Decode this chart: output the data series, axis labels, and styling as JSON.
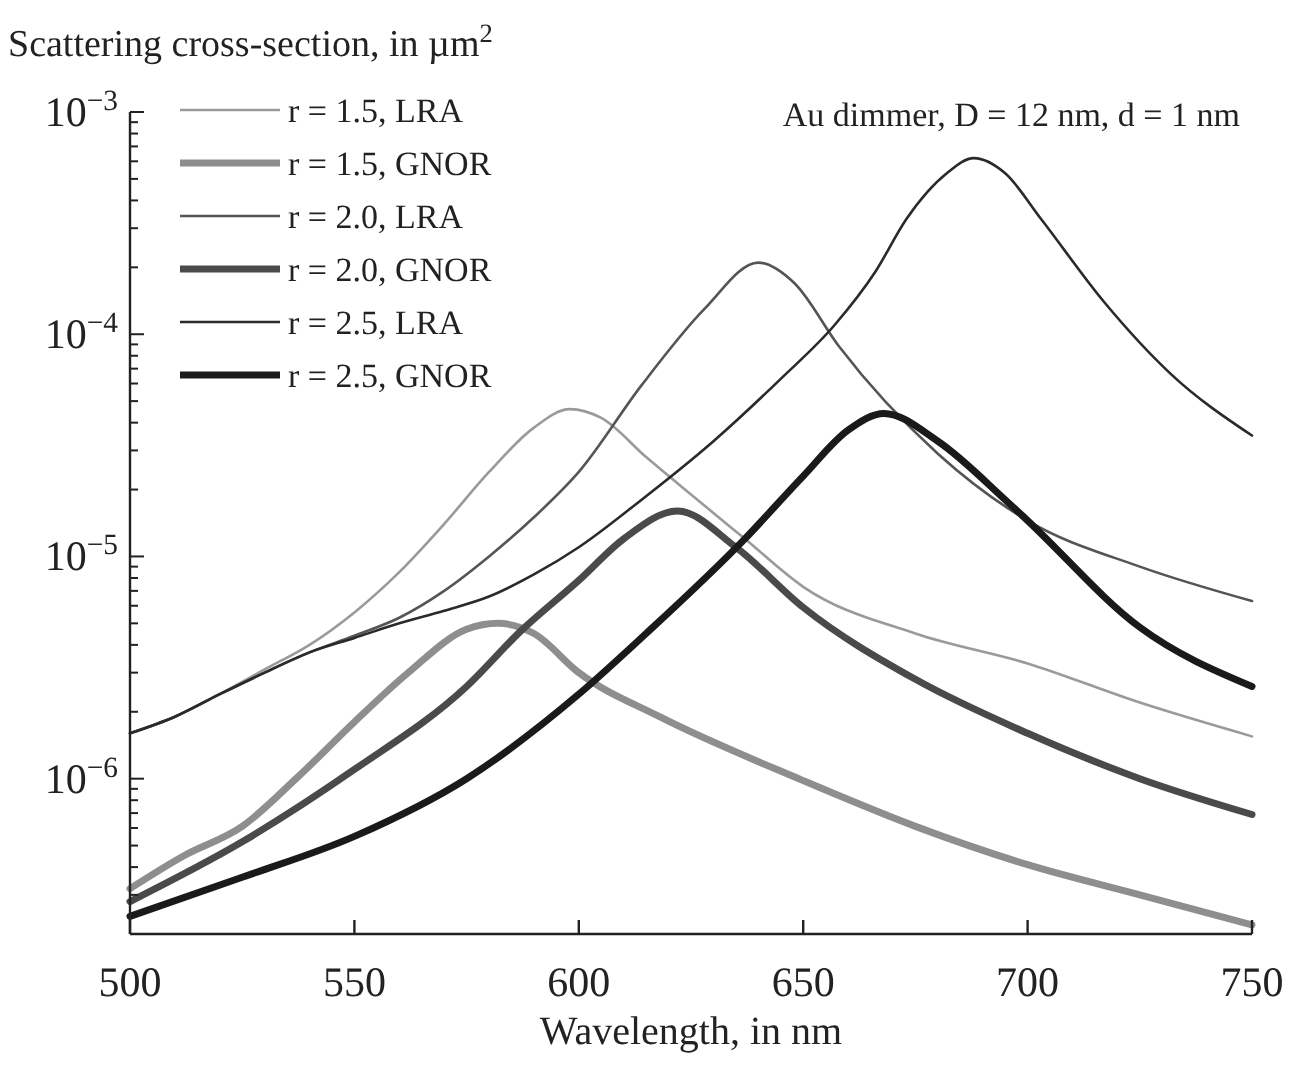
{
  "chart_data": {
    "type": "line",
    "ylabel": "Scattering cross-section, in µm$^{2}$",
    "xlabel": "Wavelength, in nm",
    "annotations": [
      "Au dimmer, D = 12 nm, d = 1 nm"
    ],
    "log": "y",
    "legend": "top left",
    "grid": false,
    "marker": "none",
    "line_style": "solid",
    "xlim": [
      500,
      750
    ],
    "xticks": [
      500,
      550,
      600,
      650,
      700,
      750
    ],
    "ylim": [
      2e-07,
      0.001
    ],
    "yticks": [
      {
        "value": 2e-07,
        "label": null
      },
      {
        "value": 3e-07,
        "label": null
      },
      {
        "value": 4e-07,
        "label": null
      },
      {
        "value": 5e-07,
        "label": null
      },
      {
        "value": 6e-07,
        "label": null
      },
      {
        "value": 7e-07,
        "label": null
      },
      {
        "value": 8e-07,
        "label": null
      },
      {
        "value": 9e-07,
        "label": null
      },
      {
        "value": 1e-06,
        "label": "10$^{−6}$"
      },
      {
        "value": 2e-06,
        "label": null
      },
      {
        "value": 3e-06,
        "label": null
      },
      {
        "value": 4e-06,
        "label": null
      },
      {
        "value": 5e-06,
        "label": null
      },
      {
        "value": 6e-06,
        "label": null
      },
      {
        "value": 7e-06,
        "label": null
      },
      {
        "value": 8e-06,
        "label": null
      },
      {
        "value": 9e-06,
        "label": null
      },
      {
        "value": 1e-05,
        "label": "10$^{−5}$"
      },
      {
        "value": 2e-05,
        "label": null
      },
      {
        "value": 3e-05,
        "label": null
      },
      {
        "value": 4e-05,
        "label": null
      },
      {
        "value": 5e-05,
        "label": null
      },
      {
        "value": 6e-05,
        "label": null
      },
      {
        "value": 7e-05,
        "label": null
      },
      {
        "value": 8e-05,
        "label": null
      },
      {
        "value": 9e-05,
        "label": null
      },
      {
        "value": 0.0001,
        "label": "10$^{−4}$"
      },
      {
        "value": 0.0002,
        "label": null
      },
      {
        "value": 0.0003,
        "label": null
      },
      {
        "value": 0.0004,
        "label": null
      },
      {
        "value": 0.0005,
        "label": null
      },
      {
        "value": 0.0006,
        "label": null
      },
      {
        "value": 0.0007,
        "label": null
      },
      {
        "value": 0.0008,
        "label": null
      },
      {
        "value": 0.0009,
        "label": null
      },
      {
        "value": 0.001,
        "label": "10$^{−3}$"
      }
    ],
    "series": [
      {
        "name": "r = 1.5, LRA",
        "color": "#9a9a9a",
        "x": [
          500,
          510,
          520,
          530,
          540,
          550,
          560,
          570,
          580,
          590,
          598,
          605,
          615,
          625,
          637,
          650,
          675,
          700,
          725,
          750
        ],
        "values": [
          1.6e-06,
          1.9e-06,
          2.4e-06,
          3.1e-06,
          4e-06,
          5.6e-06,
          8.5e-06,
          1.4e-05,
          2.4e-05,
          3.8e-05,
          4.6e-05,
          4.2e-05,
          2.8e-05,
          1.9e-05,
          1.2e-05,
          7.3e-06,
          4.5e-06,
          3.3e-06,
          2.2e-06,
          1.55e-06
        ]
      },
      {
        "name": "r = 1.5, GNOR",
        "color": "#8e8e8e",
        "x": [
          500,
          512,
          525,
          537,
          550,
          562,
          575,
          582,
          590,
          600,
          618,
          650,
          675,
          700,
          725,
          750
        ],
        "values": [
          3.2e-07,
          4.5e-07,
          6.1e-07,
          1e-06,
          1.8e-06,
          3e-06,
          4.7e-06,
          5e-06,
          4.5e-06,
          3e-06,
          1.9e-06,
          9.8e-07,
          6.1e-07,
          4.1e-07,
          3e-07,
          2.2e-07
        ]
      },
      {
        "name": "r = 2.0, LRA",
        "color": "#555555",
        "x": [
          500,
          510,
          520,
          530,
          540,
          550,
          560,
          570,
          580,
          590,
          600,
          614,
          628,
          640,
          648,
          658,
          680,
          700,
          725,
          750
        ],
        "values": [
          1.6e-06,
          1.9e-06,
          2.4e-06,
          3e-06,
          3.7e-06,
          4.4e-06,
          5.3e-06,
          7e-06,
          1e-05,
          1.5e-05,
          2.4e-05,
          5.9e-05,
          0.00013,
          0.00021,
          0.00017,
          8.8e-05,
          2.9e-05,
          1.45e-05,
          9e-06,
          6.3e-06
        ]
      },
      {
        "name": "r = 2.0, GNOR",
        "color": "#4a4a4a",
        "x": [
          500,
          525,
          550,
          575,
          587,
          600,
          610,
          622,
          635,
          650,
          675,
          700,
          725,
          750
        ],
        "values": [
          2.8e-07,
          5.2e-07,
          1.1e-06,
          2.6e-06,
          4.6e-06,
          7.8e-06,
          1.2e-05,
          1.6e-05,
          1.1e-05,
          5.9e-06,
          2.8e-06,
          1.6e-06,
          1e-06,
          6.9e-07
        ]
      },
      {
        "name": "r = 2.5, LRA",
        "color": "#2a2a2a",
        "x": [
          500,
          510,
          520,
          530,
          540,
          550,
          560,
          570,
          580,
          590,
          600,
          614,
          630,
          645,
          657,
          666,
          673,
          682,
          688,
          695,
          703,
          717,
          732,
          750
        ],
        "values": [
          1.6e-06,
          1.9e-06,
          2.4e-06,
          3e-06,
          3.7e-06,
          4.3e-06,
          5e-06,
          5.7e-06,
          6.6e-06,
          8.3e-06,
          1.1e-05,
          1.8e-05,
          3.3e-05,
          6.3e-05,
          0.00011,
          0.00019,
          0.00033,
          0.00053,
          0.00062,
          0.00053,
          0.00033,
          0.00014,
          6.6e-05,
          3.5e-05
        ]
      },
      {
        "name": "r = 2.5, GNOR",
        "color": "#1a1a1a",
        "x": [
          500,
          525,
          550,
          575,
          600,
          615,
          637,
          650,
          660,
          668,
          680,
          695,
          700,
          725,
          750
        ],
        "values": [
          2.4e-07,
          3.6e-07,
          5.5e-07,
          1e-06,
          2.4e-06,
          4.5e-06,
          1.2e-05,
          2.3e-05,
          3.7e-05,
          4.4e-05,
          3.3e-05,
          1.8e-05,
          1.45e-05,
          4.8e-06,
          2.6e-06
        ]
      }
    ]
  }
}
